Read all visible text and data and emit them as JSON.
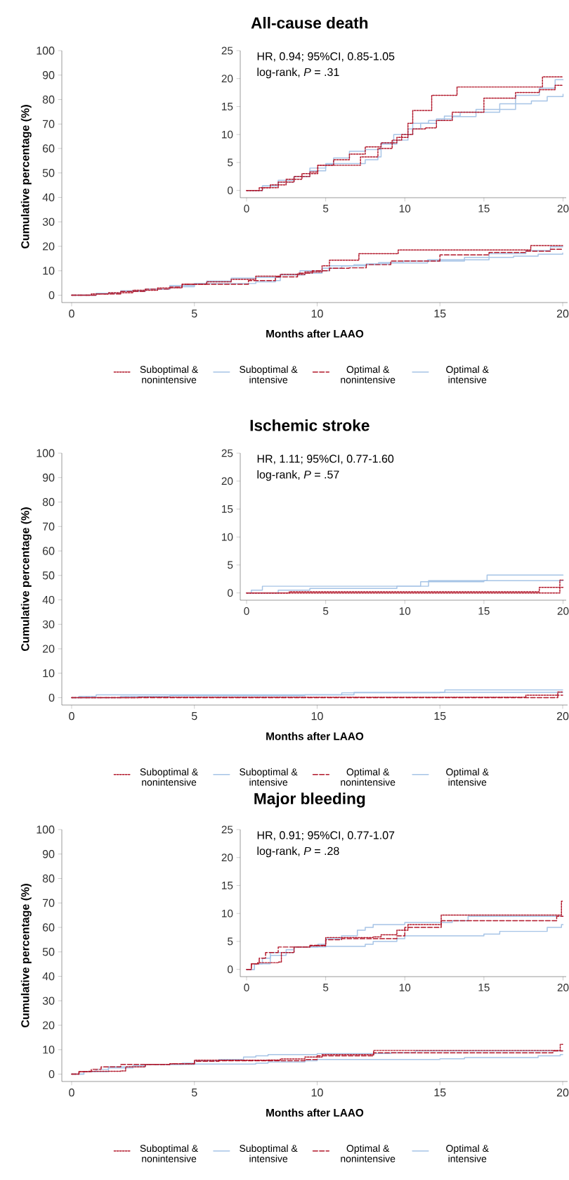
{
  "chart_data": [
    {
      "type": "step",
      "title": "All-cause death",
      "xlabel": "Months after LAAO",
      "ylabel": "Cumulative percentage (%)",
      "xlim": [
        -0.4,
        20.2
      ],
      "ylim": [
        -3,
        100
      ],
      "xticks": [
        0,
        5,
        10,
        15,
        20
      ],
      "yticks": [
        0,
        10,
        20,
        30,
        40,
        50,
        60,
        70,
        80,
        90,
        100
      ],
      "legend": "bottom",
      "series": [
        {
          "name": "Suboptimal & nonintensive",
          "color": "#b2182b",
          "line_style": "dotted",
          "x": [
            0,
            0.8,
            1.5,
            2.5,
            3.5,
            4.5,
            5.5,
            6.5,
            7.5,
            8.5,
            9.5,
            10.2,
            10.5,
            11.7,
            13.3,
            18.7,
            20
          ],
          "values": [
            0,
            0.5,
            1,
            2,
            3,
            4.5,
            5.5,
            6.5,
            7.8,
            8.5,
            9.5,
            12,
            14.3,
            17,
            18.5,
            20.3,
            20.3
          ]
        },
        {
          "name": "Suboptimal & intensive",
          "color": "#a6c4e6",
          "line_style": "solid",
          "x": [
            0,
            1,
            2,
            3,
            4,
            5,
            5.5,
            6.5,
            7.5,
            8.5,
            9.3,
            10,
            10.5,
            11.5,
            12.5,
            13.5,
            14.5,
            16,
            17,
            18.5,
            19.5,
            20
          ],
          "values": [
            0,
            0.8,
            1.5,
            2.5,
            4,
            4.7,
            5.8,
            7,
            7.3,
            8.5,
            10,
            10,
            12,
            12.5,
            13.3,
            14,
            14.5,
            15.5,
            17,
            18.3,
            19.8,
            19.8
          ]
        },
        {
          "name": "Optimal & nonintensive",
          "color": "#b2182b",
          "line_style": "dashed",
          "x": [
            0,
            1,
            2,
            3,
            4,
            4.5,
            6.8,
            7.2,
            8,
            8.3,
            9.2,
            9.8,
            10.5,
            11.3,
            12,
            13,
            14.5,
            15,
            17,
            18.5,
            19.5,
            20
          ],
          "values": [
            0,
            0.5,
            1.5,
            2.5,
            3.3,
            4.5,
            4.5,
            6,
            6,
            7.5,
            9,
            10,
            11,
            11.2,
            12.5,
            14,
            14,
            16.5,
            17.5,
            18,
            18.8,
            18.8
          ]
        },
        {
          "name": "Optimal & intensive",
          "color": "#a6c4e6",
          "line_style": "solid",
          "x": [
            0,
            1,
            2,
            3,
            4,
            5,
            7,
            7.5,
            8.3,
            8.5,
            9.5,
            10.2,
            11,
            12,
            13,
            14.5,
            16,
            17,
            18,
            19,
            20
          ],
          "values": [
            0,
            0.8,
            1.8,
            2.5,
            3.5,
            4.8,
            4.8,
            5.5,
            6,
            8.3,
            9,
            11,
            12,
            12.8,
            13.2,
            14,
            14.5,
            15.5,
            16,
            16.8,
            17.2
          ]
        }
      ]
    },
    {
      "type": "step",
      "xlim": [
        -0.4,
        20.2
      ],
      "ylim": [
        -1.3,
        25
      ],
      "xticks": [
        0,
        5,
        10,
        15,
        20
      ],
      "yticks": [
        0,
        5,
        10,
        15,
        20,
        25
      ],
      "annotations": [
        "HR, 0.94; 95%CI, 0.85-1.05",
        "log-rank, *P* = .31"
      ],
      "series": [
        {
          "color": "#b2182b",
          "line_style": "dotted",
          "x": [
            0,
            0.8,
            1.5,
            2.5,
            3.5,
            4.5,
            5.5,
            6.5,
            7.5,
            8.5,
            9.5,
            10.2,
            10.5,
            11.7,
            13.3,
            18.7,
            20
          ],
          "values": [
            0,
            0.5,
            1,
            2,
            3,
            4.5,
            5.5,
            6.5,
            7.8,
            8.5,
            9.5,
            12,
            14.3,
            17,
            18.5,
            20.3,
            20.3
          ]
        },
        {
          "color": "#a6c4e6",
          "line_style": "solid",
          "x": [
            0,
            1,
            2,
            3,
            4,
            5,
            5.5,
            6.5,
            7.5,
            8.5,
            9.3,
            10,
            10.5,
            11.5,
            12.5,
            13.5,
            14.5,
            16,
            17,
            18.5,
            19.5,
            20
          ],
          "values": [
            0,
            0.8,
            1.5,
            2.5,
            4,
            4.7,
            5.8,
            7,
            7.3,
            8.5,
            10,
            10,
            12,
            12.5,
            13.3,
            14,
            14.5,
            15.5,
            17,
            18.3,
            19.8,
            19.8
          ]
        },
        {
          "color": "#b2182b",
          "line_style": "dotted",
          "x": [
            0,
            1,
            2,
            3,
            4,
            4.5,
            6.8,
            7.2,
            8,
            8.3,
            9.2,
            9.8,
            10.5,
            11.3,
            12,
            13,
            14.5,
            15,
            17,
            18.5,
            19.5,
            20
          ],
          "values": [
            0,
            0.5,
            1.5,
            2.5,
            3.3,
            4.5,
            4.5,
            6,
            6,
            7.5,
            9,
            10,
            11,
            11.2,
            12.5,
            14,
            14,
            16.5,
            17.5,
            18,
            18.8,
            18.8
          ]
        },
        {
          "color": "#a6c4e6",
          "line_style": "solid",
          "x": [
            0,
            1,
            2,
            3,
            4,
            5,
            7,
            7.5,
            8.3,
            8.5,
            9.5,
            10.2,
            11,
            12,
            13,
            14.5,
            16,
            17,
            18,
            19,
            20
          ],
          "values": [
            0,
            0.8,
            1.8,
            2.5,
            3.5,
            4.8,
            4.8,
            5.5,
            6,
            8.3,
            9,
            11,
            12,
            12.8,
            13.2,
            14,
            14.5,
            15.5,
            16,
            16.8,
            17.2
          ]
        }
      ]
    },
    {
      "type": "step",
      "title": "Ischemic stroke",
      "xlabel": "Months after LAAO",
      "ylabel": "Cumulative percentage (%)",
      "xlim": [
        -0.4,
        20.2
      ],
      "ylim": [
        -3,
        100
      ],
      "xticks": [
        0,
        5,
        10,
        15,
        20
      ],
      "yticks": [
        0,
        10,
        20,
        30,
        40,
        50,
        60,
        70,
        80,
        90,
        100
      ],
      "legend": "bottom",
      "series": [
        {
          "name": "Suboptimal & nonintensive",
          "color": "#b2182b",
          "line_style": "dotted",
          "x": [
            0,
            2.7,
            18.5,
            19.8,
            20
          ],
          "values": [
            0,
            0.2,
            1,
            2.3,
            2.3
          ]
        },
        {
          "name": "Suboptimal & intensive",
          "color": "#a6c4e6",
          "line_style": "solid",
          "x": [
            0,
            0.3,
            1,
            10,
            11,
            15,
            20
          ],
          "values": [
            0,
            0.5,
            1.2,
            1.2,
            2,
            2.2,
            2.3
          ]
        },
        {
          "name": "Optimal & nonintensive",
          "color": "#b2182b",
          "line_style": "dashed",
          "x": [
            0,
            19.8,
            20
          ],
          "values": [
            0,
            1,
            1
          ]
        },
        {
          "name": "Optimal & intensive",
          "color": "#a6c4e6",
          "line_style": "solid",
          "x": [
            0,
            2,
            4,
            9.5,
            11.5,
            15.2,
            20
          ],
          "values": [
            0,
            0.5,
            0.8,
            1.2,
            2.2,
            3.2,
            3.2
          ]
        }
      ]
    },
    {
      "type": "step",
      "xlim": [
        -0.4,
        20.2
      ],
      "ylim": [
        -1.3,
        25
      ],
      "xticks": [
        0,
        5,
        10,
        15,
        20
      ],
      "yticks": [
        0,
        5,
        10,
        15,
        20,
        25
      ],
      "annotations": [
        "HR, 1.11; 95%CI, 0.77-1.60",
        "log-rank, *P* = .57"
      ],
      "series": [
        {
          "color": "#b2182b",
          "line_style": "dotted",
          "x": [
            0,
            2.7,
            18.5,
            19.8,
            20
          ],
          "values": [
            0,
            0.2,
            1,
            2.3,
            2.3
          ]
        },
        {
          "color": "#a6c4e6",
          "line_style": "solid",
          "x": [
            0,
            0.3,
            1,
            10,
            11,
            15,
            20
          ],
          "values": [
            0,
            0.5,
            1.2,
            1.2,
            2,
            2.2,
            2.3
          ]
        },
        {
          "color": "#b2182b",
          "line_style": "dotted",
          "x": [
            0,
            19.8,
            20
          ],
          "values": [
            0,
            1,
            1
          ]
        },
        {
          "color": "#a6c4e6",
          "line_style": "solid",
          "x": [
            0,
            2,
            4,
            9.5,
            11.5,
            15.2,
            20
          ],
          "values": [
            0,
            0.5,
            0.8,
            1.2,
            2.2,
            3.2,
            3.2
          ]
        }
      ]
    },
    {
      "type": "step",
      "title": "Major bleeding",
      "xlabel": "Months after LAAO",
      "ylabel": "Cumulative percentage (%)",
      "xlim": [
        -0.4,
        20.2
      ],
      "ylim": [
        -3,
        100
      ],
      "xticks": [
        0,
        5,
        10,
        15,
        20
      ],
      "yticks": [
        0,
        10,
        20,
        30,
        40,
        50,
        60,
        70,
        80,
        90,
        100
      ],
      "legend": "bottom",
      "series": [
        {
          "name": "Suboptimal & nonintensive",
          "color": "#b2182b",
          "line_style": "dotted",
          "x": [
            0,
            0.3,
            0.7,
            2,
            2.2,
            3,
            4,
            5,
            8,
            8.5,
            9.5,
            10.2,
            12.3,
            19.9,
            20
          ],
          "values": [
            0,
            1,
            1.2,
            1.3,
            3,
            4,
            4.2,
            5.7,
            5.8,
            6.2,
            7,
            8,
            9.7,
            12.2,
            12.2
          ]
        },
        {
          "name": "Suboptimal & intensive",
          "color": "#a6c4e6",
          "line_style": "solid",
          "x": [
            0,
            0.5,
            1,
            1.5,
            3,
            4.5,
            5,
            6,
            7,
            7.5,
            8,
            10,
            13,
            14,
            20
          ],
          "values": [
            0,
            1,
            2,
            3,
            4,
            4.5,
            5.5,
            6,
            7,
            7.5,
            8,
            8.4,
            8.7,
            9.5,
            9.5
          ]
        },
        {
          "name": "Optimal & nonintensive",
          "color": "#b2182b",
          "line_style": "dashed",
          "x": [
            0,
            0.3,
            0.8,
            1.2,
            2,
            4,
            5,
            6,
            9.5,
            10,
            12.3,
            19.6,
            20
          ],
          "values": [
            0,
            1,
            2,
            3,
            4,
            4.3,
            5.3,
            5.5,
            6,
            7.5,
            8.7,
            9.5,
            9.5
          ]
        },
        {
          "name": "Optimal & intensive",
          "color": "#a6c4e6",
          "line_style": "solid",
          "x": [
            0,
            0.5,
            1.5,
            2.5,
            3,
            5,
            7.5,
            8,
            9.5,
            10,
            15,
            16,
            19,
            19.9,
            20
          ],
          "values": [
            0,
            1,
            2.5,
            3.5,
            4,
            4.1,
            4.5,
            5,
            5.5,
            6,
            6.3,
            6.8,
            7.5,
            8,
            8
          ]
        }
      ]
    },
    {
      "type": "step",
      "xlim": [
        -0.4,
        20.2
      ],
      "ylim": [
        -1.3,
        25
      ],
      "xticks": [
        0,
        5,
        10,
        15,
        20
      ],
      "yticks": [
        0,
        5,
        10,
        15,
        20,
        25
      ],
      "annotations": [
        "HR, 0.91; 95%CI, 0.77-1.07",
        "log-rank, *P* = .28"
      ],
      "series": [
        {
          "color": "#b2182b",
          "line_style": "dotted",
          "x": [
            0,
            0.3,
            0.7,
            2,
            2.2,
            3,
            4,
            5,
            8,
            8.5,
            9.5,
            10.2,
            12.3,
            19.9,
            20
          ],
          "values": [
            0,
            1,
            1.2,
            1.3,
            3,
            4,
            4.2,
            5.7,
            5.8,
            6.2,
            7,
            8,
            9.7,
            12.2,
            12.2
          ]
        },
        {
          "color": "#a6c4e6",
          "line_style": "solid",
          "x": [
            0,
            0.5,
            1,
            1.5,
            3,
            4.5,
            5,
            6,
            7,
            7.5,
            8,
            10,
            13,
            14,
            20
          ],
          "values": [
            0,
            1,
            2,
            3,
            4,
            4.5,
            5.5,
            6,
            7,
            7.5,
            8,
            8.4,
            8.7,
            9.5,
            9.5
          ]
        },
        {
          "color": "#b2182b",
          "line_style": "dashed",
          "x": [
            0,
            0.3,
            0.8,
            1.2,
            2,
            4,
            5,
            6,
            9.5,
            10,
            12.3,
            19.6,
            20
          ],
          "values": [
            0,
            1,
            2,
            3,
            4,
            4.3,
            5.3,
            5.5,
            6,
            7.5,
            8.7,
            9.5,
            9.5
          ]
        },
        {
          "color": "#a6c4e6",
          "line_style": "solid",
          "x": [
            0,
            0.5,
            1.5,
            2.5,
            3,
            5,
            7.5,
            8,
            9.5,
            10,
            15,
            16,
            19,
            19.9,
            20
          ],
          "values": [
            0,
            1,
            2.5,
            3.5,
            4,
            4.1,
            4.5,
            5,
            5.5,
            6,
            6.3,
            6.8,
            7.5,
            8,
            8
          ]
        }
      ]
    }
  ]
}
